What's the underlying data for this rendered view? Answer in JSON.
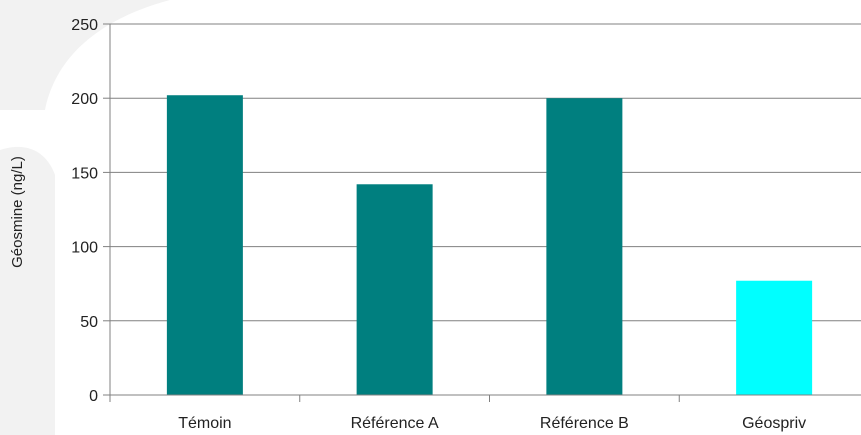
{
  "chart_data": {
    "type": "bar",
    "title": "",
    "xlabel": "",
    "ylabel": "Géosmine (ng/L)",
    "categories": [
      "Témoin",
      "Référence A",
      "Référence B",
      "Géospriv"
    ],
    "values": [
      202,
      142,
      200,
      77
    ],
    "ylim": [
      0,
      250
    ],
    "yticks": [
      0,
      50,
      100,
      150,
      200,
      250
    ],
    "ytick_labels": [
      "0",
      "50",
      "100",
      "150",
      "200",
      "250"
    ],
    "grid": true,
    "legend": "none",
    "bar_colors": [
      "#007f7f",
      "#007f7f",
      "#007f7f",
      "#00ffff"
    ],
    "gridline_color": "#808080",
    "axis_color": "#808080",
    "background_decoration_color": "#f2f2f2"
  }
}
